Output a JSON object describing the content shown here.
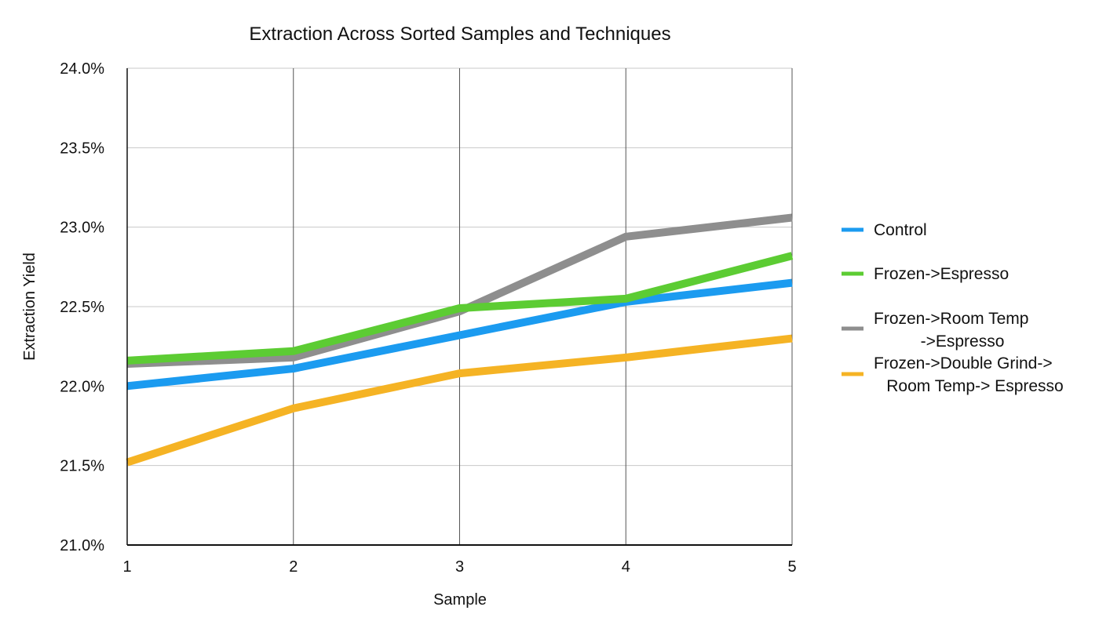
{
  "chart_data": {
    "type": "line",
    "title": "Extraction Across Sorted Samples and Techniques",
    "xlabel": "Sample",
    "ylabel": "Extraction Yield",
    "x": [
      1,
      2,
      3,
      4,
      5
    ],
    "x_tick_labels": [
      "1",
      "2",
      "3",
      "4",
      "5"
    ],
    "ylim": [
      21.0,
      24.0
    ],
    "y_ticks": [
      21.0,
      21.5,
      22.0,
      22.5,
      23.0,
      23.5,
      24.0
    ],
    "y_tick_labels": [
      "21.0%",
      "21.5%",
      "22.0%",
      "22.5%",
      "23.0%",
      "23.5%",
      "24.0%"
    ],
    "grid": true,
    "legend_position": "right",
    "series": [
      {
        "name": "Control",
        "legend_lines": [
          "Control"
        ],
        "color": "#1b9bf0",
        "values": [
          22.0,
          22.11,
          22.32,
          22.53,
          22.65
        ]
      },
      {
        "name": "Frozen->Espresso",
        "legend_lines": [
          "Frozen->Espresso"
        ],
        "color": "#5ccc33",
        "values": [
          22.16,
          22.22,
          22.49,
          22.55,
          22.82
        ]
      },
      {
        "name": "Frozen->Room Temp ->Espresso",
        "legend_lines": [
          "Frozen->Room Temp",
          "->Espresso"
        ],
        "color": "#8e8e8e",
        "values": [
          22.14,
          22.18,
          22.47,
          22.94,
          23.06
        ]
      },
      {
        "name": "Frozen->Double Grind-> Room Temp-> Espresso",
        "legend_lines": [
          "Frozen->Double Grind->",
          "Room Temp-> Espresso"
        ],
        "color": "#f5b324",
        "values": [
          21.52,
          21.86,
          22.08,
          22.18,
          22.3
        ]
      }
    ]
  }
}
